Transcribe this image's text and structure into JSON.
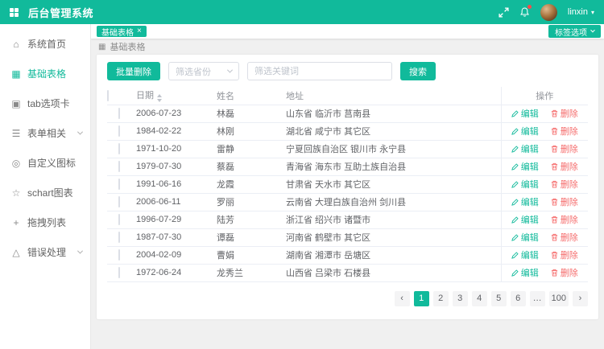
{
  "theme": {
    "accent": "#11ba9b",
    "danger": "#f56c6c",
    "content_bg": "#f0f0f0"
  },
  "header": {
    "title": "后台管理系统",
    "username": "linxin",
    "notification_badge": true
  },
  "sidebar": {
    "items": [
      {
        "label": "系统首页",
        "icon": "home-icon",
        "glyph": "⌂",
        "active": false,
        "expandable": false
      },
      {
        "label": "基础表格",
        "icon": "table-icon",
        "glyph": "▦",
        "active": true,
        "expandable": false
      },
      {
        "label": "tab选项卡",
        "icon": "tabs-icon",
        "glyph": "▣",
        "active": false,
        "expandable": false
      },
      {
        "label": "表单相关",
        "icon": "form-icon",
        "glyph": "☰",
        "active": false,
        "expandable": true
      },
      {
        "label": "自定义图标",
        "icon": "target-icon",
        "glyph": "◎",
        "active": false,
        "expandable": false
      },
      {
        "label": "schart图表",
        "icon": "star-icon",
        "glyph": "☆",
        "active": false,
        "expandable": false
      },
      {
        "label": "拖拽列表",
        "icon": "move-icon",
        "glyph": "+",
        "active": false,
        "expandable": false
      },
      {
        "label": "错误处理",
        "icon": "warning-icon",
        "glyph": "△",
        "active": false,
        "expandable": true
      }
    ]
  },
  "tags_bar": {
    "tags": [
      {
        "label": "基础表格",
        "active": true
      }
    ],
    "options_button": "标签选项"
  },
  "breadcrumb": {
    "icon": "table-icon",
    "label": "基础表格"
  },
  "toolbar": {
    "batch_delete_label": "批量删除",
    "province_select_placeholder": "筛选省份",
    "keyword_input_placeholder": "筛选关键词",
    "keyword_input_value": "",
    "search_label": "搜索"
  },
  "table": {
    "columns": {
      "date": "日期",
      "name": "姓名",
      "address": "地址",
      "ops": "操作"
    },
    "edit_label": "编辑",
    "delete_label": "删除",
    "rows": [
      {
        "date": "2006-07-23",
        "name": "林磊",
        "address": "山东省 临沂市 莒南县"
      },
      {
        "date": "1984-02-22",
        "name": "林刚",
        "address": "湖北省 咸宁市 其它区"
      },
      {
        "date": "1971-10-20",
        "name": "雷静",
        "address": "宁夏回族自治区 银川市 永宁县"
      },
      {
        "date": "1979-07-30",
        "name": "蔡磊",
        "address": "青海省 海东市 互助土族自治县"
      },
      {
        "date": "1991-06-16",
        "name": "龙霞",
        "address": "甘肃省 天水市 其它区"
      },
      {
        "date": "2006-06-11",
        "name": "罗丽",
        "address": "云南省 大理白族自治州 剑川县"
      },
      {
        "date": "1996-07-29",
        "name": "陆芳",
        "address": "浙江省 绍兴市 诸暨市"
      },
      {
        "date": "1987-07-30",
        "name": "谭磊",
        "address": "河南省 鹤壁市 其它区"
      },
      {
        "date": "2004-02-09",
        "name": "曹娟",
        "address": "湖南省 湘潭市 岳塘区"
      },
      {
        "date": "1972-06-24",
        "name": "龙秀兰",
        "address": "山西省 吕梁市 石楼县"
      }
    ]
  },
  "pagination": {
    "prev": "‹",
    "next": "›",
    "pages": [
      "1",
      "2",
      "3",
      "4",
      "5",
      "6",
      "…",
      "100"
    ],
    "active_page": "1"
  }
}
